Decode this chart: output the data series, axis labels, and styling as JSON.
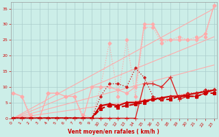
{
  "xlabel": "Vent moyen/en rafales ( km/h )",
  "background_color": "#cceee8",
  "grid_color": "#aacccc",
  "x_ticks": [
    0,
    1,
    2,
    3,
    4,
    5,
    6,
    7,
    8,
    9,
    10,
    11,
    12,
    13,
    14,
    15,
    16,
    17,
    18,
    19,
    20,
    21,
    22,
    23
  ],
  "y_ticks": [
    0,
    5,
    10,
    15,
    20,
    25,
    30,
    35
  ],
  "ylim": [
    0,
    37
  ],
  "xlim": [
    -0.3,
    23.3
  ],
  "slope_lines": [
    {
      "x": [
        0,
        23
      ],
      "y": [
        0,
        35
      ],
      "color": "#ffaaaa",
      "lw": 0.8
    },
    {
      "x": [
        0,
        23
      ],
      "y": [
        0,
        26
      ],
      "color": "#ffaaaa",
      "lw": 0.8
    },
    {
      "x": [
        0,
        23
      ],
      "y": [
        0,
        17
      ],
      "color": "#ffaaaa",
      "lw": 0.8
    },
    {
      "x": [
        0,
        23
      ],
      "y": [
        0,
        9
      ],
      "color": "#ffaaaa",
      "lw": 0.8
    }
  ],
  "series": [
    {
      "x": [
        0,
        1,
        2,
        3,
        4,
        5,
        6,
        7,
        8,
        9,
        10,
        11,
        12,
        13,
        14,
        15,
        16,
        17,
        18,
        19,
        20,
        21,
        22,
        23
      ],
      "y": [
        8,
        7,
        1,
        0,
        8,
        8,
        7,
        7,
        1,
        0,
        10,
        24,
        7,
        25,
        7,
        29,
        29,
        24,
        25,
        26,
        25,
        26,
        26,
        36
      ],
      "color": "#ffaaaa",
      "lw": 0.9,
      "marker": "D",
      "ms": 2.5,
      "linestyle": "dotted"
    },
    {
      "x": [
        0,
        1,
        2,
        3,
        4,
        5,
        6,
        7,
        8,
        9,
        10,
        11,
        12,
        13,
        14,
        15,
        16,
        17,
        18,
        19,
        20,
        21,
        22,
        23
      ],
      "y": [
        8,
        7,
        0,
        0,
        8,
        8,
        7,
        7,
        0,
        10,
        10,
        10,
        9,
        8,
        10,
        30,
        30,
        25,
        25,
        25,
        25,
        25,
        27,
        36
      ],
      "color": "#ffaaaa",
      "lw": 0.9,
      "marker": "D",
      "ms": 2.5,
      "linestyle": "solid"
    },
    {
      "x": [
        0,
        1,
        2,
        3,
        4,
        5,
        6,
        7,
        8,
        9,
        10,
        11,
        12,
        13,
        14,
        15,
        16,
        17,
        18,
        19,
        20,
        21,
        22,
        23
      ],
      "y": [
        0,
        0,
        0,
        0,
        0,
        0,
        0,
        0,
        0,
        0,
        0,
        0,
        0,
        0,
        0,
        11,
        11,
        10,
        13,
        6,
        7,
        7,
        8,
        9
      ],
      "color": "#dd2222",
      "lw": 1.0,
      "marker": "+",
      "ms": 4.0,
      "linestyle": "solid"
    },
    {
      "x": [
        0,
        1,
        2,
        3,
        4,
        5,
        6,
        7,
        8,
        9,
        10,
        11,
        12,
        13,
        14,
        15,
        16,
        17,
        18,
        19,
        20,
        21,
        22,
        23
      ],
      "y": [
        0,
        0,
        0,
        0,
        0,
        0,
        0,
        0,
        0,
        0,
        3,
        4,
        3.5,
        4,
        4.5,
        5,
        6,
        6,
        6,
        7,
        7,
        7,
        8,
        8
      ],
      "color": "#cc0000",
      "lw": 1.5,
      "marker": "s",
      "ms": 2.5,
      "linestyle": "dashed"
    },
    {
      "x": [
        0,
        1,
        2,
        3,
        4,
        5,
        6,
        7,
        8,
        9,
        10,
        11,
        12,
        13,
        14,
        15,
        16,
        17,
        18,
        19,
        20,
        21,
        22,
        23
      ],
      "y": [
        0,
        0,
        0,
        0,
        0,
        0,
        0,
        0,
        0,
        0,
        4,
        4.5,
        4,
        5,
        5,
        5.5,
        6,
        6.5,
        7,
        7,
        7.5,
        8,
        8.5,
        9
      ],
      "color": "#cc0000",
      "lw": 1.5,
      "marker": "D",
      "ms": 2.5,
      "linestyle": "solid"
    },
    {
      "x": [
        0,
        1,
        2,
        3,
        4,
        5,
        6,
        7,
        8,
        9,
        10,
        11,
        12,
        13,
        14,
        15,
        16,
        17,
        18,
        19,
        20,
        21,
        22,
        23
      ],
      "y": [
        0,
        0,
        0,
        0,
        0,
        0,
        0,
        0,
        0,
        0,
        7,
        11,
        11,
        10,
        16,
        13,
        7,
        6,
        7,
        7,
        8,
        8,
        9,
        9
      ],
      "color": "#cc2222",
      "lw": 1.0,
      "marker": "D",
      "ms": 2.0,
      "linestyle": "dotted"
    }
  ]
}
